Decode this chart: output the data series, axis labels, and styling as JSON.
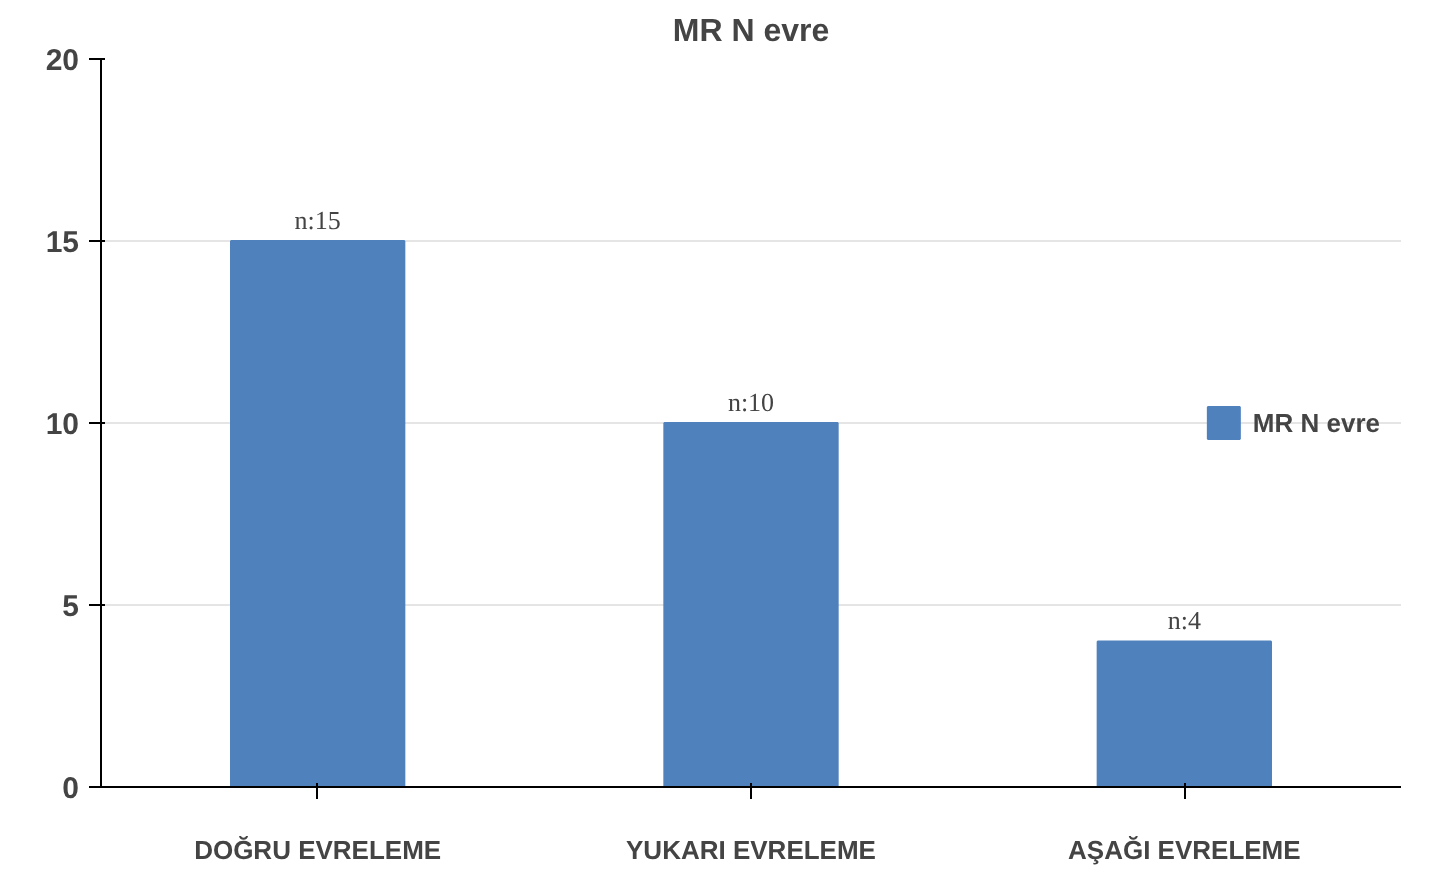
{
  "chart_data": {
    "type": "bar",
    "title": "MR N evre",
    "categories": [
      "DOĞRU EVRELEME",
      "YUKARI EVRELEME",
      "AŞAĞI EVRELEME"
    ],
    "series": [
      {
        "name": "MR N evre",
        "color": "#4f81bd",
        "values": [
          15,
          10,
          4
        ],
        "value_labels": [
          "n:15",
          "n:10",
          "n:4"
        ]
      }
    ],
    "ylim": [
      0,
      20
    ],
    "yticks": [
      0,
      5,
      10,
      15,
      20
    ],
    "grid": "y",
    "legend": "right"
  }
}
